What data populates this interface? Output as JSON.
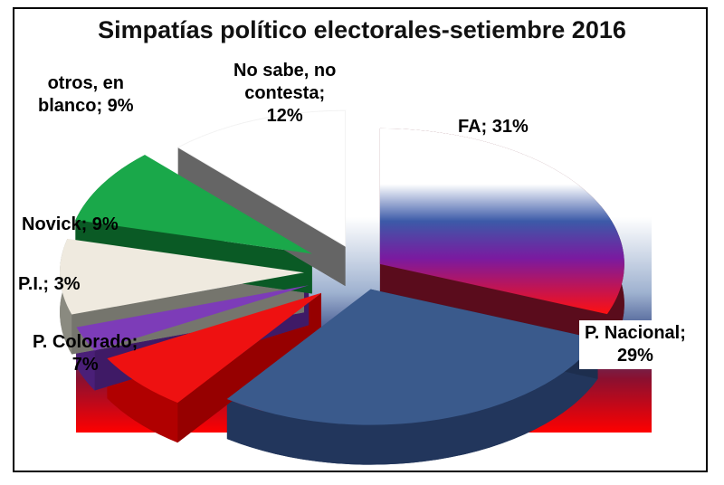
{
  "chart_data": {
    "type": "pie",
    "title": "Simpatías político electorales-setiembre 2016",
    "slices": [
      {
        "label": "FA",
        "value": 31,
        "display": "FA; 31%",
        "color": "#7b1a3a"
      },
      {
        "label": "P. Nacional",
        "value": 29,
        "display_lines": [
          "P. Nacional;",
          "29%"
        ],
        "color": "#3a5a8c"
      },
      {
        "label": "P. Colorado",
        "value": 7,
        "display_lines": [
          "P. Colorado;",
          "7%"
        ],
        "color": "#ee1111"
      },
      {
        "label": "P.I.",
        "value": 3,
        "display": "P.I.; 3%",
        "color": "#7d3cb8"
      },
      {
        "label": "Novick",
        "value": 9,
        "display": "Novick; 9%",
        "color": "#efeadf"
      },
      {
        "label": "otros, en blanco",
        "value": 9,
        "display_lines": [
          "otros, en",
          "blanco; 9%"
        ],
        "color": "#1aa84a"
      },
      {
        "label": "No sabe, no contesta",
        "value": 12,
        "display_lines": [
          "No sabe, no",
          "contesta;",
          "12%"
        ],
        "color": "#ffffff"
      }
    ],
    "legend": "none"
  }
}
